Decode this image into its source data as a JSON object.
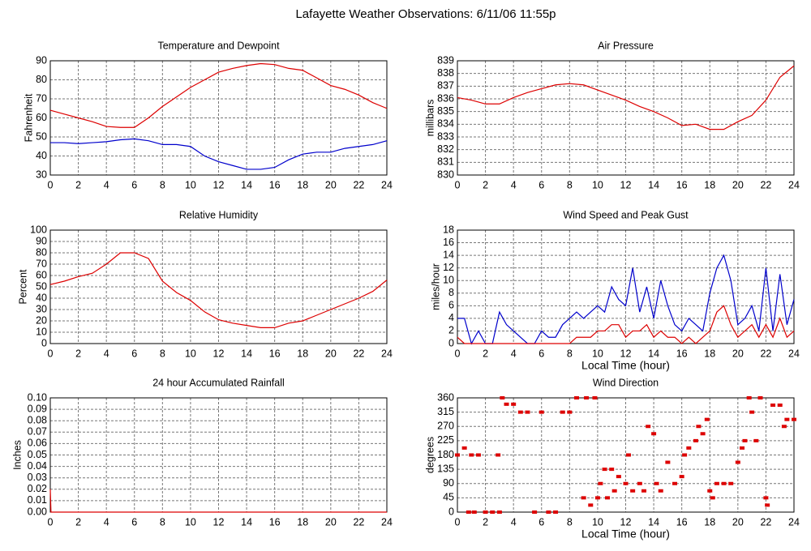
{
  "title": "Lafayette Weather Observations: 6/11/06 11:55p",
  "chart_data": [
    {
      "type": "line",
      "title": "Temperature and Dewpoint",
      "ylabel": "Fahrenheit",
      "x": [
        0,
        1,
        2,
        3,
        4,
        5,
        6,
        7,
        8,
        9,
        10,
        11,
        12,
        13,
        14,
        15,
        16,
        17,
        18,
        19,
        20,
        21,
        22,
        23,
        24
      ],
      "series": [
        {
          "color": "#dd0000",
          "values": [
            64,
            62,
            60,
            58,
            55.5,
            55,
            55,
            60,
            66,
            71,
            76,
            80,
            84,
            86,
            87.5,
            88.5,
            88,
            86,
            85,
            81,
            77,
            75,
            72,
            68,
            65
          ]
        },
        {
          "color": "#0000cc",
          "values": [
            47,
            47,
            46.5,
            47,
            47.5,
            48.5,
            49,
            48,
            46,
            46,
            45,
            40,
            37,
            35,
            33,
            33,
            34,
            38,
            41,
            42,
            42,
            44,
            45,
            46,
            48
          ]
        }
      ],
      "xlim": [
        0,
        24
      ],
      "xticks": [
        0,
        2,
        4,
        6,
        8,
        10,
        12,
        14,
        16,
        18,
        20,
        22,
        24
      ],
      "ylim": [
        30,
        90
      ],
      "yticks": [
        30,
        40,
        50,
        60,
        70,
        80,
        90
      ],
      "grid": true
    },
    {
      "type": "line",
      "title": "Air Pressure",
      "ylabel": "millibars",
      "x": [
        0,
        1,
        2,
        3,
        4,
        5,
        6,
        7,
        8,
        9,
        10,
        11,
        12,
        13,
        14,
        15,
        16,
        17,
        18,
        19,
        20,
        21,
        22,
        23,
        24
      ],
      "series": [
        {
          "color": "#dd0000",
          "values": [
            836.1,
            835.9,
            835.6,
            835.6,
            836.1,
            836.5,
            836.8,
            837.1,
            837.2,
            837.1,
            836.7,
            836.3,
            835.9,
            835.4,
            835.0,
            834.5,
            833.9,
            834.0,
            833.6,
            833.6,
            834.2,
            834.7,
            835.9,
            837.7,
            838.6
          ]
        }
      ],
      "xlim": [
        0,
        24
      ],
      "xticks": [
        0,
        2,
        4,
        6,
        8,
        10,
        12,
        14,
        16,
        18,
        20,
        22,
        24
      ],
      "ylim": [
        830,
        839
      ],
      "yticks": [
        830,
        831,
        832,
        833,
        834,
        835,
        836,
        837,
        838,
        839
      ],
      "grid": true
    },
    {
      "type": "line",
      "title": "Relative Humidity",
      "ylabel": "Percent",
      "x": [
        0,
        1,
        2,
        3,
        4,
        5,
        6,
        7,
        8,
        9,
        10,
        11,
        12,
        13,
        14,
        15,
        16,
        17,
        18,
        19,
        20,
        21,
        22,
        23,
        24
      ],
      "series": [
        {
          "color": "#dd0000",
          "values": [
            52,
            55,
            59,
            62,
            70,
            80,
            80,
            75,
            55,
            45,
            38,
            28,
            21,
            18,
            16,
            14,
            14,
            18,
            20,
            25,
            30,
            35,
            40,
            46,
            56
          ]
        }
      ],
      "xlim": [
        0,
        24
      ],
      "xticks": [
        0,
        2,
        4,
        6,
        8,
        10,
        12,
        14,
        16,
        18,
        20,
        22,
        24
      ],
      "ylim": [
        0,
        100
      ],
      "yticks": [
        0,
        10,
        20,
        30,
        40,
        50,
        60,
        70,
        80,
        90,
        100
      ],
      "grid": true
    },
    {
      "type": "line",
      "title": "Wind Speed and Peak Gust",
      "ylabel": "miles/hour",
      "xlabel": "Local Time (hour)",
      "x": [
        0,
        0.5,
        1,
        1.5,
        2,
        2.5,
        3,
        3.5,
        4,
        4.5,
        5,
        5.5,
        6,
        6.5,
        7,
        7.5,
        8,
        8.5,
        9,
        9.5,
        10,
        10.5,
        11,
        11.5,
        12,
        12.5,
        13,
        13.5,
        14,
        14.5,
        15,
        15.5,
        16,
        16.5,
        17,
        17.5,
        18,
        18.5,
        19,
        19.5,
        20,
        20.5,
        21,
        21.5,
        22,
        22.5,
        23,
        23.5,
        24
      ],
      "series": [
        {
          "color": "#0000cc",
          "values": [
            4,
            4,
            0,
            2,
            0,
            0,
            5,
            3,
            2,
            1,
            0,
            0,
            2,
            1,
            1,
            3,
            4,
            5,
            4,
            5,
            6,
            5,
            9,
            7,
            6,
            12,
            5,
            9,
            4,
            10,
            6,
            3,
            2,
            4,
            3,
            2,
            8,
            12,
            14,
            10,
            3,
            4,
            6,
            2,
            12,
            2,
            11,
            3,
            7
          ]
        },
        {
          "color": "#dd0000",
          "values": [
            1,
            0,
            0,
            0,
            0,
            0,
            0,
            0,
            0,
            0,
            0,
            0,
            0,
            0,
            0,
            0,
            0,
            1,
            1,
            1,
            2,
            2,
            3,
            3,
            1,
            2,
            2,
            3,
            1,
            2,
            1,
            1,
            0,
            1,
            0,
            1,
            2,
            5,
            6,
            3,
            1,
            2,
            3,
            1,
            3,
            1,
            4,
            1,
            2
          ]
        }
      ],
      "xlim": [
        0,
        24
      ],
      "xticks": [
        0,
        2,
        4,
        6,
        8,
        10,
        12,
        14,
        16,
        18,
        20,
        22,
        24
      ],
      "ylim": [
        0,
        18
      ],
      "yticks": [
        0,
        2,
        4,
        6,
        8,
        10,
        12,
        14,
        16,
        18
      ],
      "grid": true
    },
    {
      "type": "line",
      "title": "24 hour Accumulated Rainfall",
      "ylabel": "Inches",
      "x": [
        0,
        0.05,
        24
      ],
      "series": [
        {
          "color": "#dd0000",
          "values": [
            0.02,
            0,
            0
          ]
        }
      ],
      "xlim": [
        0,
        24
      ],
      "xticks": [
        0,
        2,
        4,
        6,
        8,
        10,
        12,
        14,
        16,
        18,
        20,
        22,
        24
      ],
      "ylim": [
        0,
        0.1
      ],
      "yticks": [
        {
          "value": 0,
          "label": "0.00"
        },
        {
          "value": 0.01,
          "label": "0.01"
        },
        {
          "value": 0.02,
          "label": "0.02"
        },
        {
          "value": 0.03,
          "label": "0.03"
        },
        {
          "value": 0.04,
          "label": "0.04"
        },
        {
          "value": 0.05,
          "label": "0.05"
        },
        {
          "value": 0.06,
          "label": "0.06"
        },
        {
          "value": 0.07,
          "label": "0.07"
        },
        {
          "value": 0.08,
          "label": "0.08"
        },
        {
          "value": 0.09,
          "label": "0.09"
        },
        {
          "value": 0.1,
          "label": "0.10"
        }
      ],
      "grid": true
    },
    {
      "type": "scatter",
      "title": "Wind Direction",
      "ylabel": "degrees",
      "xlabel": "Local Time (hour)",
      "x": [
        0,
        0.5,
        1,
        0.8,
        1.2,
        1.5,
        2,
        2.5,
        3,
        2.9,
        3.2,
        3.5,
        4,
        4.5,
        5,
        5.5,
        6,
        6.5,
        7,
        7.5,
        8,
        8.5,
        9,
        9.2,
        9.5,
        9.8,
        10,
        10.2,
        10.5,
        10.7,
        11,
        11.2,
        11.5,
        12,
        12.2,
        12.5,
        13,
        13.3,
        13.6,
        14,
        14.2,
        14.5,
        15,
        15.5,
        16,
        16.2,
        16.5,
        17,
        17.2,
        17.5,
        17.8,
        18,
        18.2,
        18.5,
        19,
        19.5,
        20,
        20.3,
        20.5,
        20.8,
        21,
        21.3,
        21.6,
        22,
        22.1,
        22.5,
        23,
        23.3,
        23.5,
        24
      ],
      "series": [
        {
          "color": "#dd0000",
          "values": [
            180,
            202,
            180,
            0,
            0,
            180,
            0,
            0,
            0,
            180,
            360,
            340,
            340,
            315,
            315,
            0,
            315,
            0,
            0,
            315,
            315,
            360,
            45,
            360,
            22,
            360,
            45,
            90,
            135,
            45,
            135,
            67,
            112,
            90,
            180,
            67,
            90,
            67,
            270,
            247,
            90,
            67,
            157,
            90,
            112,
            180,
            202,
            225,
            270,
            247,
            292,
            67,
            45,
            90,
            90,
            90,
            157,
            202,
            225,
            360,
            315,
            225,
            360,
            45,
            22,
            337,
            337,
            270,
            292,
            292
          ]
        }
      ],
      "xlim": [
        0,
        24
      ],
      "xticks": [
        0,
        2,
        4,
        6,
        8,
        10,
        12,
        14,
        16,
        18,
        20,
        22,
        24
      ],
      "ylim": [
        0,
        360
      ],
      "yticks": [
        0,
        45,
        90,
        135,
        180,
        225,
        270,
        315,
        360
      ],
      "grid": true
    }
  ]
}
